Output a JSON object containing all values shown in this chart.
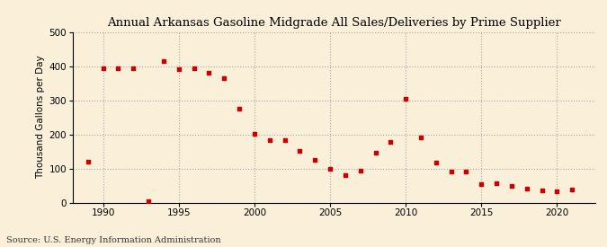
{
  "title": "Annual Arkansas Gasoline Midgrade All Sales/Deliveries by Prime Supplier",
  "ylabel": "Thousand Gallons per Day",
  "source": "Source: U.S. Energy Information Administration",
  "background_color": "#faefd9",
  "marker_color": "#cc0000",
  "ylim": [
    0,
    500
  ],
  "yticks": [
    0,
    100,
    200,
    300,
    400,
    500
  ],
  "xlim": [
    1988.0,
    2022.5
  ],
  "xticks": [
    1990,
    1995,
    2000,
    2005,
    2010,
    2015,
    2020
  ],
  "years": [
    1989,
    1990,
    1991,
    1992,
    1993,
    1994,
    1995,
    1996,
    1997,
    1998,
    1999,
    2000,
    2001,
    2002,
    2003,
    2004,
    2005,
    2006,
    2007,
    2008,
    2009,
    2010,
    2011,
    2012,
    2013,
    2014,
    2015,
    2016,
    2017,
    2018,
    2019,
    2020,
    2021
  ],
  "values": [
    120,
    393,
    393,
    395,
    5,
    415,
    392,
    395,
    382,
    365,
    275,
    202,
    183,
    183,
    152,
    125,
    100,
    80,
    93,
    145,
    178,
    305,
    190,
    118,
    90,
    92,
    55,
    57,
    50,
    40,
    35,
    33,
    37
  ]
}
